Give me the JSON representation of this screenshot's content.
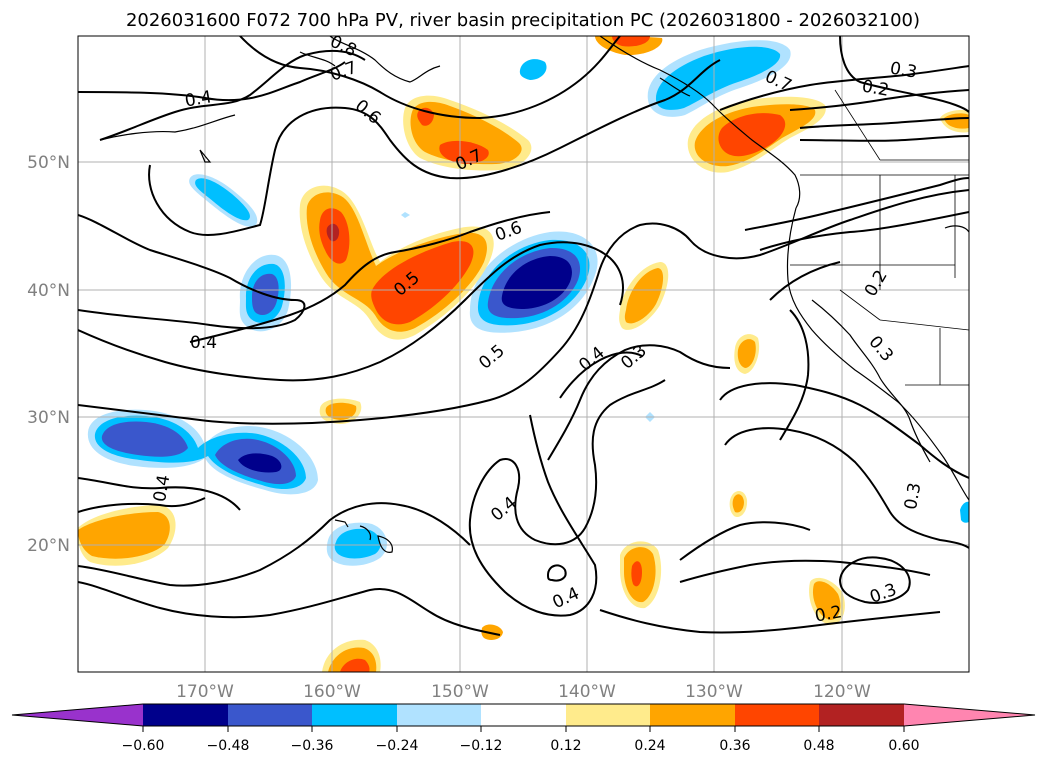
{
  "title": "2026031600 F072 700 hPa PV, river basin precipitation PC (2026031800 - 2026032100)",
  "lat_labels": [
    "50°N",
    "40°N",
    "30°N",
    "20°N"
  ],
  "lon_labels": [
    "170°W",
    "160°W",
    "150°W",
    "140°W",
    "130°W",
    "120°W"
  ],
  "contour_labels": [
    "0.8",
    "0.7",
    "0.4",
    "0.6",
    "0.7",
    "0.6",
    "0.5",
    "0.4",
    "0.5",
    "0.4",
    "0.3",
    "0.4",
    "0.4",
    "0.4",
    "0.7",
    "0.2",
    "0.3",
    "0.2",
    "0.3",
    "0.3",
    "0.2",
    "0.3"
  ],
  "colorbar": {
    "tick_labels": [
      "−0.60",
      "−0.48",
      "−0.36",
      "−0.24",
      "−0.12",
      "0.12",
      "0.24",
      "0.36",
      "0.48",
      "0.60"
    ],
    "colors": [
      "#9932cc",
      "#00008b",
      "#3a57cc",
      "#00bfff",
      "#b0e2ff",
      "#ffffff",
      "#ffeb8c",
      "#ffa500",
      "#ff4500",
      "#b22222",
      "#ff85b0"
    ]
  }
}
